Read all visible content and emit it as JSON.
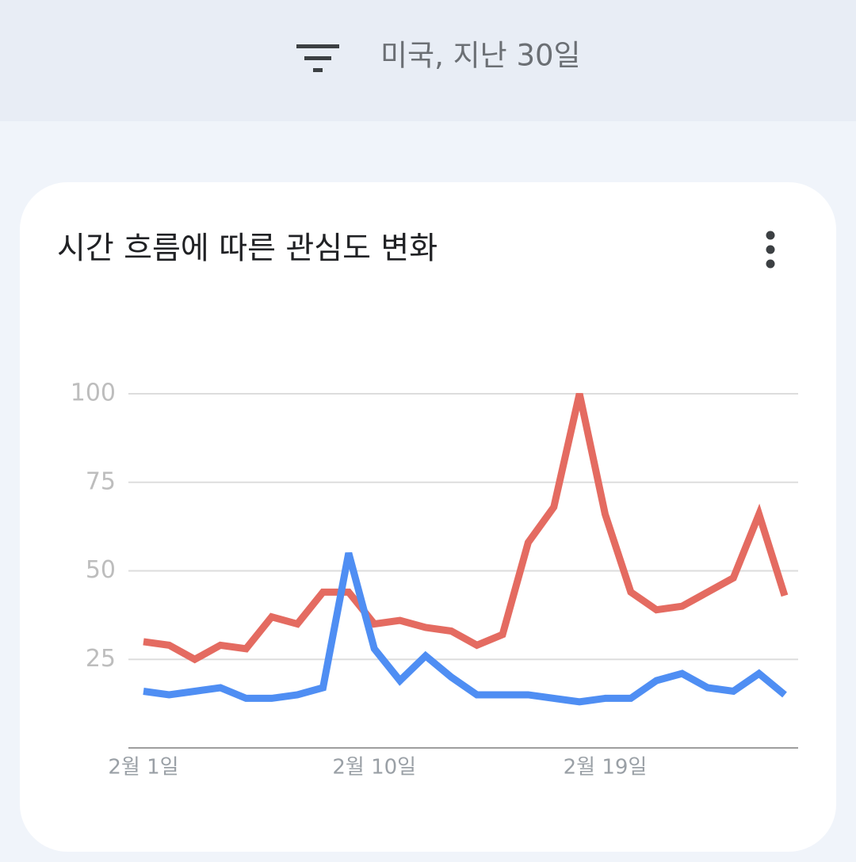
{
  "header": {
    "filter_label": "미국, 지난 30일"
  },
  "chart_data": {
    "type": "line",
    "title": "시간 흐름에 따른 관심도 변화",
    "categories": [
      "2월 1일",
      null,
      null,
      null,
      null,
      null,
      null,
      null,
      null,
      "2월 10일",
      null,
      null,
      null,
      null,
      null,
      null,
      null,
      null,
      "2월 19일",
      null,
      null,
      null,
      null,
      null,
      null,
      null
    ],
    "series": [
      {
        "color": "#e46b61",
        "values": [
          30,
          29,
          25,
          29,
          28,
          37,
          35,
          44,
          44,
          35,
          36,
          34,
          33,
          29,
          32,
          58,
          68,
          100,
          66,
          44,
          39,
          40,
          44,
          48,
          66,
          43
        ]
      },
      {
        "color": "#4f8ef3",
        "values": [
          16,
          15,
          16,
          17,
          14,
          14,
          15,
          17,
          55,
          28,
          19,
          26,
          20,
          15,
          15,
          15,
          14,
          13,
          14,
          14,
          19,
          21,
          17,
          16,
          21,
          15
        ]
      }
    ],
    "ylim": [
      0,
      100
    ],
    "yticks": [
      25,
      50,
      75,
      100
    ],
    "grid": true
  }
}
